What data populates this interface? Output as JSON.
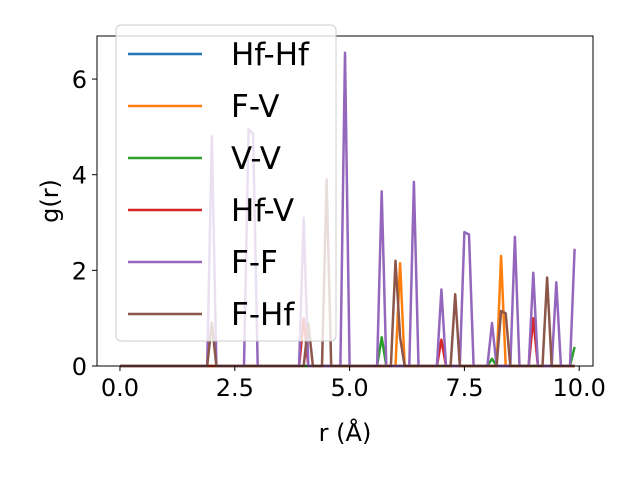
{
  "chart_data": {
    "type": "line",
    "xlabel": "r (Å)",
    "ylabel": "g(r)",
    "xlim": [
      -0.5,
      10.3
    ],
    "ylim": [
      0,
      6.9
    ],
    "xticks": [
      0.0,
      2.5,
      5.0,
      7.5,
      10.0
    ],
    "xtick_labels": [
      "0.0",
      "2.5",
      "5.0",
      "7.5",
      "10.0"
    ],
    "yticks": [
      0,
      2,
      4,
      6
    ],
    "ytick_labels": [
      "0",
      "2",
      "4",
      "6"
    ],
    "grid": false,
    "legend_position": "upper-left",
    "series": [
      {
        "name": "Hf-Hf",
        "color": "#1f77b4",
        "points": [
          [
            0.0,
            0
          ],
          [
            9.9,
            0
          ]
        ]
      },
      {
        "name": "F-V",
        "color": "#ff7f0e",
        "points": [
          [
            0.0,
            0
          ],
          [
            6.0,
            0
          ],
          [
            6.1,
            2.15
          ],
          [
            6.2,
            0
          ],
          [
            8.2,
            0
          ],
          [
            8.3,
            2.3
          ],
          [
            8.4,
            0
          ],
          [
            9.9,
            0
          ]
        ]
      },
      {
        "name": "V-V",
        "color": "#2ca02c",
        "points": [
          [
            0.0,
            0
          ],
          [
            5.6,
            0
          ],
          [
            5.7,
            0.6
          ],
          [
            5.8,
            0
          ],
          [
            8.0,
            0
          ],
          [
            8.1,
            0.15
          ],
          [
            8.2,
            0
          ],
          [
            9.8,
            0
          ],
          [
            9.9,
            0.4
          ]
        ]
      },
      {
        "name": "Hf-V",
        "color": "#d62728",
        "points": [
          [
            0.0,
            0
          ],
          [
            3.9,
            0
          ],
          [
            4.0,
            1.0
          ],
          [
            4.1,
            0
          ],
          [
            6.9,
            0
          ],
          [
            7.0,
            0.55
          ],
          [
            7.1,
            0
          ],
          [
            8.9,
            0
          ],
          [
            9.0,
            1.0
          ],
          [
            9.1,
            0
          ],
          [
            9.9,
            0
          ]
        ]
      },
      {
        "name": "F-F",
        "color": "#9467bd",
        "points": [
          [
            0.0,
            0
          ],
          [
            1.9,
            0
          ],
          [
            2.0,
            4.8
          ],
          [
            2.1,
            0
          ],
          [
            2.7,
            0
          ],
          [
            2.8,
            4.95
          ],
          [
            2.9,
            4.85
          ],
          [
            3.0,
            0
          ],
          [
            3.9,
            0
          ],
          [
            4.0,
            3.1
          ],
          [
            4.1,
            0
          ],
          [
            4.8,
            0
          ],
          [
            4.9,
            6.55
          ],
          [
            5.0,
            0
          ],
          [
            5.6,
            0
          ],
          [
            5.7,
            3.65
          ],
          [
            5.8,
            0
          ],
          [
            6.3,
            0
          ],
          [
            6.4,
            3.85
          ],
          [
            6.5,
            0
          ],
          [
            6.9,
            0
          ],
          [
            7.0,
            1.6
          ],
          [
            7.1,
            0
          ],
          [
            7.4,
            0
          ],
          [
            7.5,
            2.8
          ],
          [
            7.6,
            2.75
          ],
          [
            7.7,
            0
          ],
          [
            8.0,
            0
          ],
          [
            8.1,
            0.9
          ],
          [
            8.2,
            0
          ],
          [
            8.5,
            0
          ],
          [
            8.6,
            2.7
          ],
          [
            8.7,
            0
          ],
          [
            8.9,
            0
          ],
          [
            9.0,
            1.95
          ],
          [
            9.1,
            0
          ],
          [
            9.4,
            0
          ],
          [
            9.5,
            1.75
          ],
          [
            9.6,
            0
          ],
          [
            9.8,
            0
          ],
          [
            9.9,
            2.45
          ]
        ]
      },
      {
        "name": "F-Hf",
        "color": "#8c564b",
        "points": [
          [
            0.0,
            0
          ],
          [
            1.9,
            0
          ],
          [
            2.0,
            0.9
          ],
          [
            2.1,
            0
          ],
          [
            4.0,
            0
          ],
          [
            4.1,
            0.9
          ],
          [
            4.2,
            0
          ],
          [
            4.4,
            0
          ],
          [
            4.5,
            3.9
          ],
          [
            4.6,
            0
          ],
          [
            5.9,
            0
          ],
          [
            6.0,
            2.2
          ],
          [
            6.1,
            0.6
          ],
          [
            6.2,
            0
          ],
          [
            7.2,
            0
          ],
          [
            7.3,
            1.5
          ],
          [
            7.4,
            0
          ],
          [
            8.2,
            0
          ],
          [
            8.3,
            1.15
          ],
          [
            8.4,
            1.1
          ],
          [
            8.5,
            0
          ],
          [
            9.2,
            0
          ],
          [
            9.3,
            1.85
          ],
          [
            9.4,
            0
          ],
          [
            9.9,
            0
          ]
        ]
      }
    ]
  }
}
